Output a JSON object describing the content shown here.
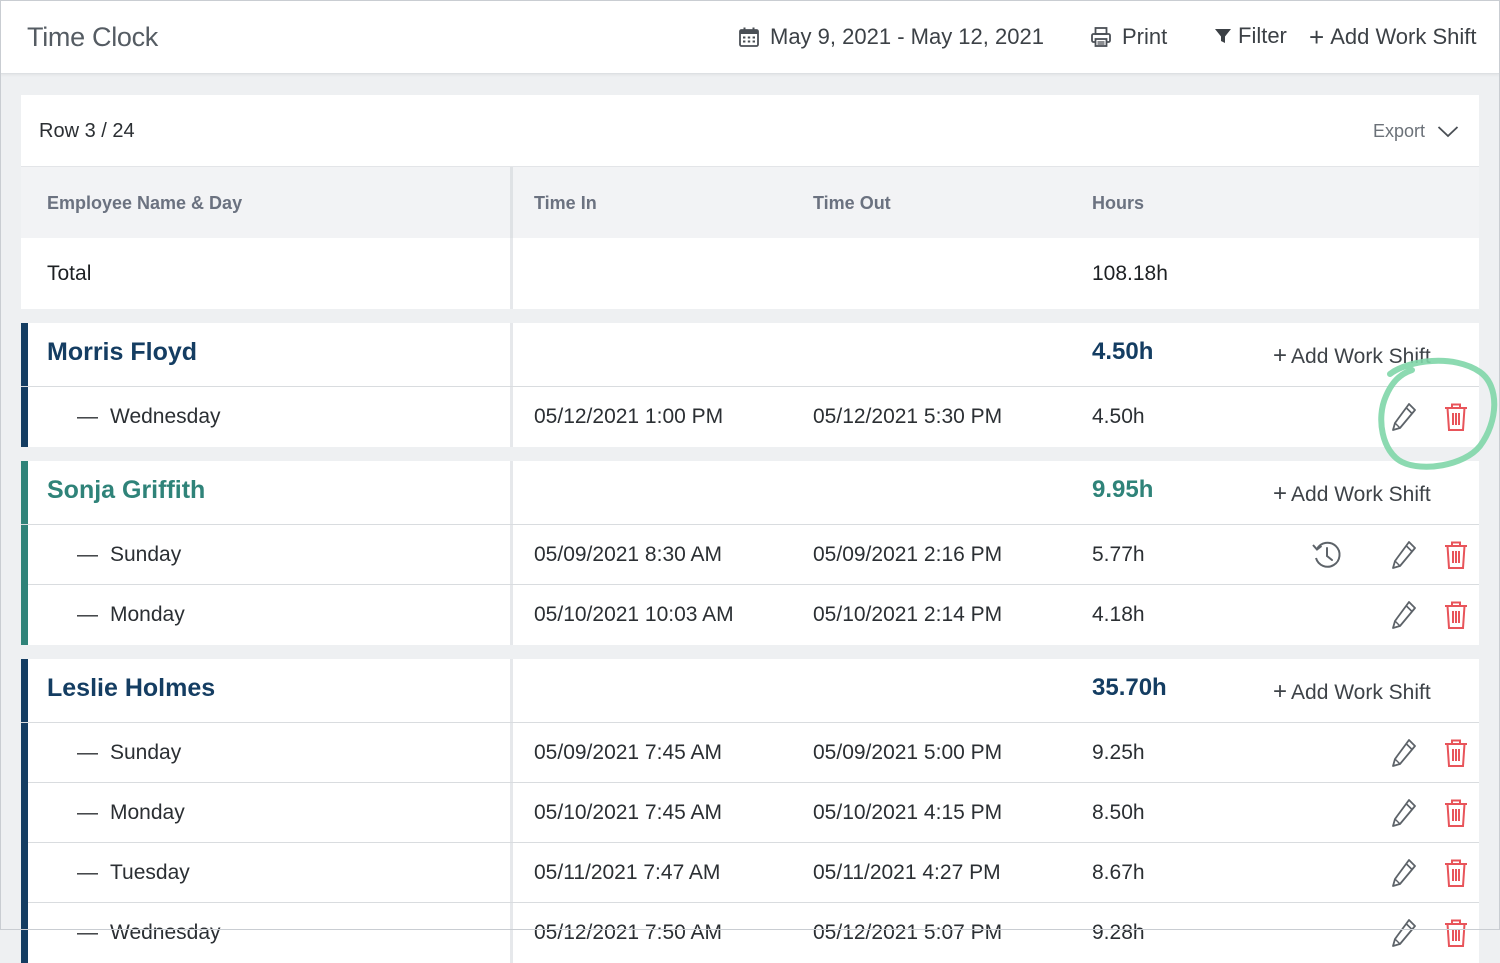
{
  "app": {
    "title": "Time Clock"
  },
  "toolbar": {
    "date_range": "May 9, 2021 - May 12, 2021",
    "print_label": "Print",
    "filter_label": "Filter",
    "add_label": "Add Work Shift"
  },
  "table": {
    "row_counter": "Row 3 / 24",
    "export_label": "Export",
    "headers": {
      "name": "Employee Name & Day",
      "time_in": "Time In",
      "time_out": "Time Out",
      "hours": "Hours"
    },
    "total": {
      "label": "Total",
      "hours": "108.18h"
    }
  },
  "colors": {
    "navy": "#143d62",
    "teal": "#2f8379",
    "danger": "#e8545a",
    "highlight": "#7fd6a8"
  },
  "groups": [
    {
      "name": "Morris Floyd",
      "total": "4.50h",
      "add_label": "Add Work Shift",
      "color": "navy",
      "shifts": [
        {
          "day": "Wednesday",
          "time_in": "05/12/2021 1:00 PM",
          "time_out": "05/12/2021 5:30 PM",
          "hours": "4.50h"
        }
      ]
    },
    {
      "name": "Sonja Griffith",
      "total": "9.95h",
      "add_label": "Add Work Shift",
      "color": "teal",
      "shifts": [
        {
          "day": "Sunday",
          "time_in": "05/09/2021 8:30 AM",
          "time_out": "05/09/2021 2:16 PM",
          "hours": "5.77h",
          "has_history": true
        },
        {
          "day": "Monday",
          "time_in": "05/10/2021 10:03 AM",
          "time_out": "05/10/2021 2:14 PM",
          "hours": "4.18h"
        }
      ]
    },
    {
      "name": "Leslie Holmes",
      "total": "35.70h",
      "add_label": "Add Work Shift",
      "color": "navy",
      "shifts": [
        {
          "day": "Sunday",
          "time_in": "05/09/2021 7:45 AM",
          "time_out": "05/09/2021 5:00 PM",
          "hours": "9.25h"
        },
        {
          "day": "Monday",
          "time_in": "05/10/2021 7:45 AM",
          "time_out": "05/10/2021 4:15 PM",
          "hours": "8.50h"
        },
        {
          "day": "Tuesday",
          "time_in": "05/11/2021 7:47 AM",
          "time_out": "05/11/2021 4:27 PM",
          "hours": "8.67h"
        },
        {
          "day": "Wednesday",
          "time_in": "05/12/2021 7:50 AM",
          "time_out": "05/12/2021 5:07 PM",
          "hours": "9.28h"
        }
      ]
    }
  ]
}
